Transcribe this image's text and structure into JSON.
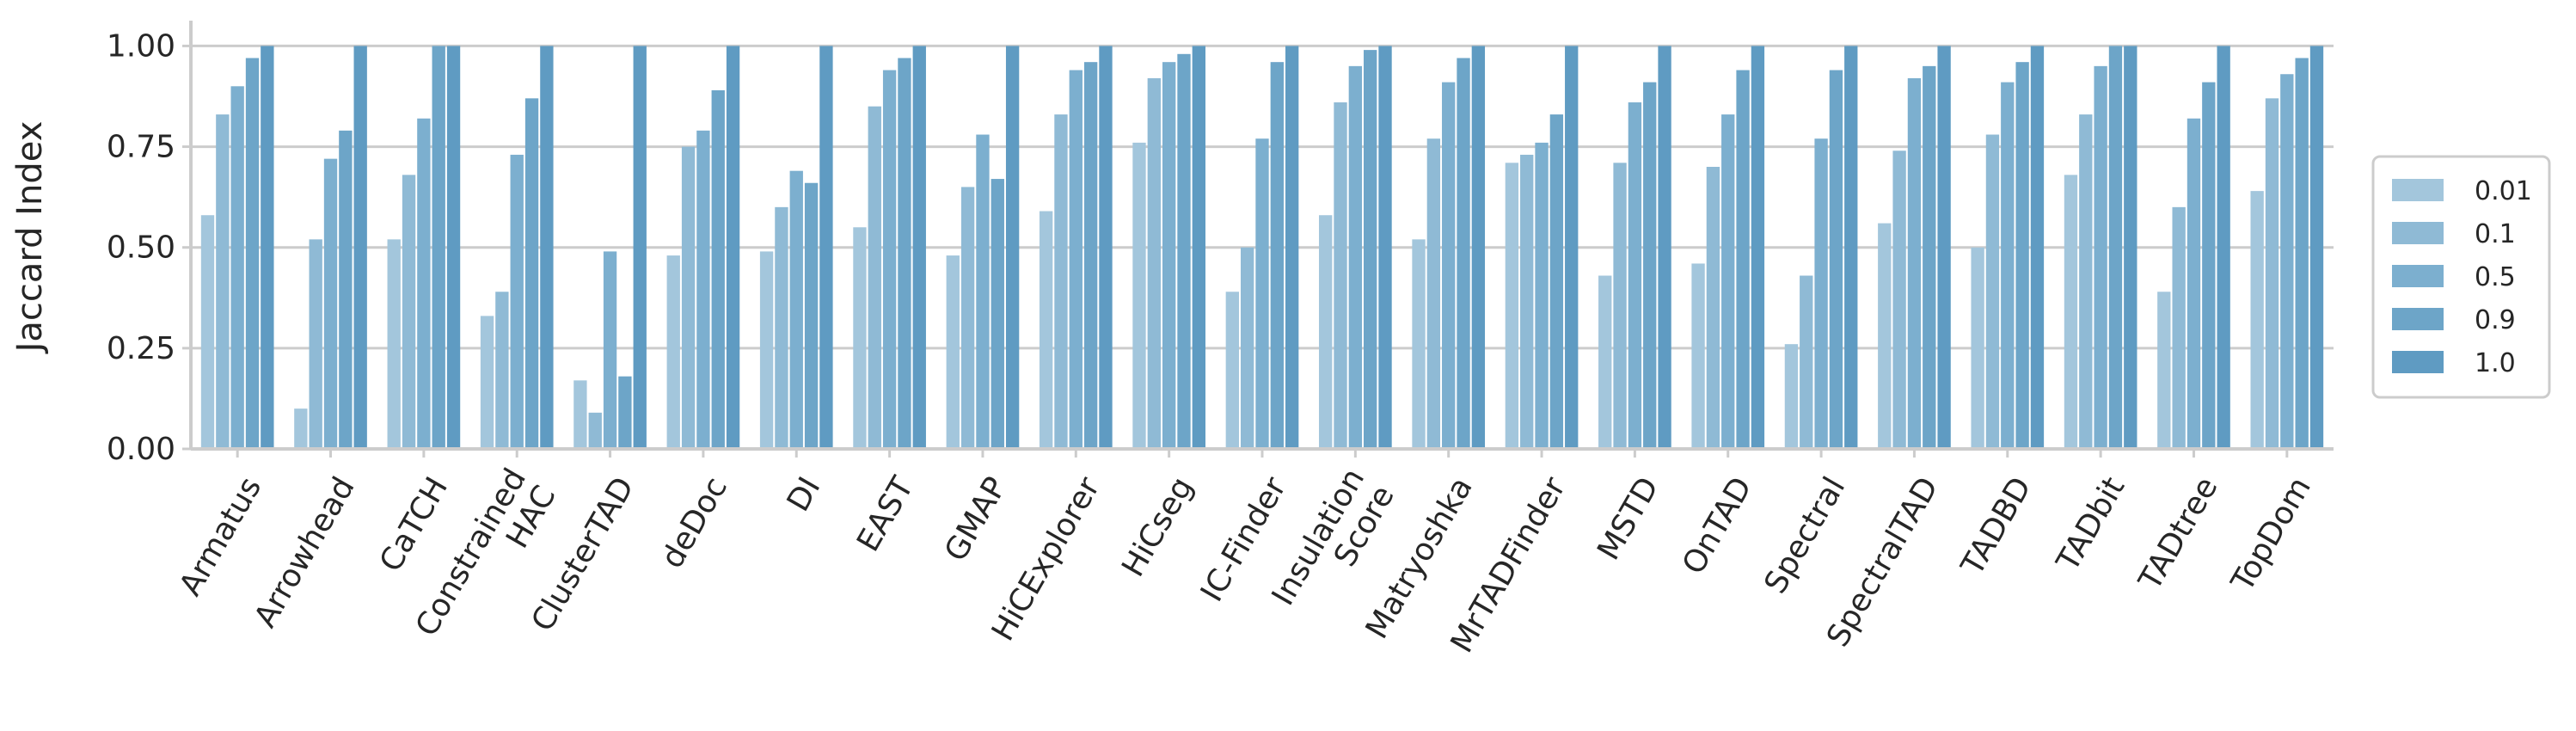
{
  "chart_data": {
    "type": "bar",
    "ylabel": "Jaccard Index",
    "xlabel": "",
    "ylim": [
      0,
      1.05
    ],
    "yticks": [
      "0.00",
      "0.25",
      "0.50",
      "0.75",
      "1.00"
    ],
    "grid": "horizontal",
    "legend_position": "right",
    "categories": [
      [
        "Armatus"
      ],
      [
        "Arrowhead"
      ],
      [
        "CaTCH"
      ],
      [
        "Constrained",
        "HAC"
      ],
      [
        "ClusterTAD"
      ],
      [
        "deDoc"
      ],
      [
        "DI"
      ],
      [
        "EAST"
      ],
      [
        "GMAP"
      ],
      [
        "HiCExplorer"
      ],
      [
        "HiCseg"
      ],
      [
        "IC-Finder"
      ],
      [
        "Insulation",
        "Score"
      ],
      [
        "Matryoshka"
      ],
      [
        "MrTADFinder"
      ],
      [
        "MSTD"
      ],
      [
        "OnTAD"
      ],
      [
        "Spectral"
      ],
      [
        "SpectralTAD"
      ],
      [
        "TADBD"
      ],
      [
        "TADbit"
      ],
      [
        "TADtree"
      ],
      [
        "TopDom"
      ]
    ],
    "series": [
      {
        "name": "0.01",
        "color": "#a3c6dc",
        "values": [
          0.58,
          0.1,
          0.52,
          0.33,
          0.17,
          0.48,
          0.49,
          0.55,
          0.48,
          0.59,
          0.76,
          0.39,
          0.58,
          0.52,
          0.71,
          0.43,
          0.46,
          0.26,
          0.56,
          0.5,
          0.68,
          0.39,
          0.64
        ]
      },
      {
        "name": "0.1",
        "color": "#8fbad5",
        "values": [
          0.83,
          0.52,
          0.68,
          0.39,
          0.09,
          0.75,
          0.6,
          0.85,
          0.65,
          0.83,
          0.92,
          0.5,
          0.86,
          0.77,
          0.73,
          0.71,
          0.7,
          0.43,
          0.74,
          0.78,
          0.83,
          0.6,
          0.87
        ]
      },
      {
        "name": "0.5",
        "color": "#7cafcf",
        "values": [
          0.9,
          0.72,
          0.82,
          0.73,
          0.49,
          0.79,
          0.69,
          0.94,
          0.78,
          0.94,
          0.96,
          0.77,
          0.95,
          0.91,
          0.76,
          0.86,
          0.83,
          0.77,
          0.92,
          0.91,
          0.95,
          0.82,
          0.93
        ]
      },
      {
        "name": "0.9",
        "color": "#6da5c8",
        "values": [
          0.97,
          0.79,
          1.0,
          0.87,
          0.18,
          0.89,
          0.66,
          0.97,
          0.67,
          0.96,
          0.98,
          0.96,
          0.99,
          0.97,
          0.83,
          0.91,
          0.94,
          0.94,
          0.95,
          0.96,
          1.0,
          0.91,
          0.97
        ]
      },
      {
        "name": "1.0",
        "color": "#5f9bc2",
        "values": [
          1.0,
          1.0,
          1.0,
          1.0,
          1.0,
          1.0,
          1.0,
          1.0,
          1.0,
          1.0,
          1.0,
          1.0,
          1.0,
          1.0,
          1.0,
          1.0,
          1.0,
          1.0,
          1.0,
          1.0,
          1.0,
          1.0,
          1.0
        ]
      }
    ]
  }
}
